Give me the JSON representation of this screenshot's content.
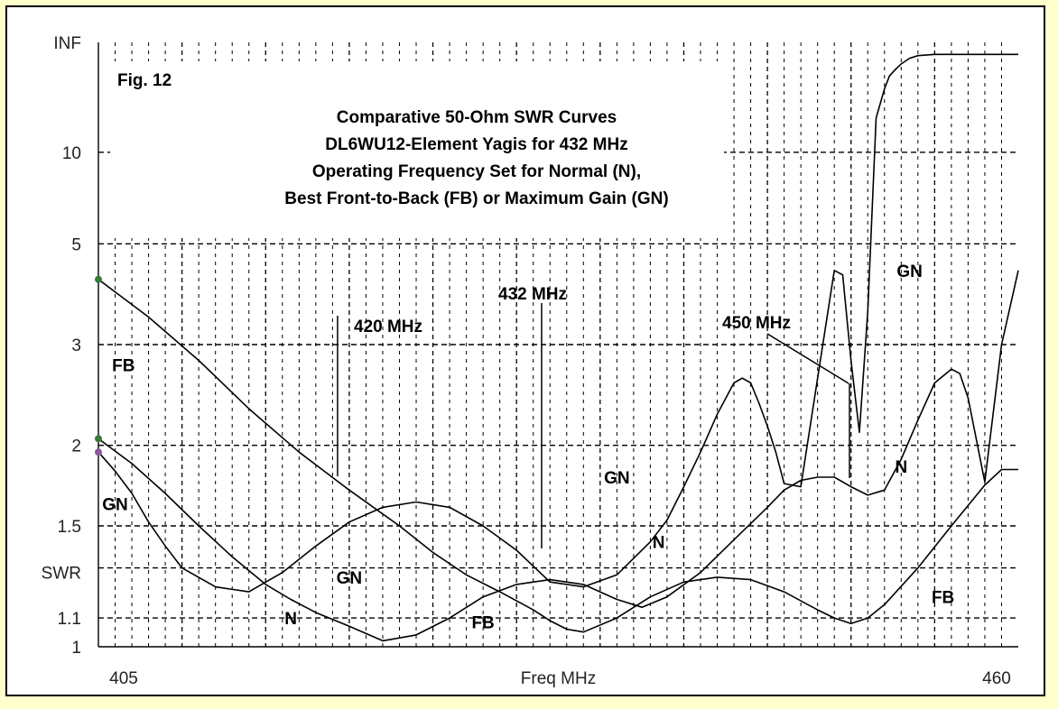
{
  "chart_data": {
    "type": "line",
    "title": "Fig. 12",
    "subtitle_lines": [
      "Comparative 50-Ohm SWR Curves",
      "DL6WU12-Element Yagis for 432 MHz",
      "Operating Frequency Set for Normal (N),",
      "Best Front-to-Back (FB) or Maximum Gain (GN)"
    ],
    "xlabel": "Freq MHz",
    "ylabel": "SWR",
    "xlim": [
      405,
      460
    ],
    "x_tick_labels": [
      "405",
      "460"
    ],
    "y_tick_labels": [
      "INF",
      "10",
      "5",
      "3",
      "2",
      "1.5",
      "1.1",
      "1"
    ],
    "y_scale": "reflection-coefficient (SWR)",
    "grid": true,
    "series": [
      {
        "name": "N",
        "x": [
          405,
          407,
          409,
          411,
          413,
          415,
          416.5,
          418,
          420,
          422,
          424,
          426,
          428,
          430,
          432,
          434,
          436,
          437.5,
          439,
          441,
          443,
          445,
          446,
          447,
          448,
          449,
          450,
          451,
          452,
          453,
          454,
          455,
          456,
          456.5,
          457,
          458,
          459,
          460
        ],
        "y": [
          2.05,
          1.87,
          1.68,
          1.5,
          1.35,
          1.23,
          1.17,
          1.12,
          1.07,
          1.02,
          1.04,
          1.1,
          1.18,
          1.23,
          1.25,
          1.23,
          1.17,
          1.14,
          1.18,
          1.28,
          1.43,
          1.6,
          1.7,
          1.76,
          1.78,
          1.78,
          1.72,
          1.67,
          1.7,
          1.9,
          2.2,
          2.55,
          2.7,
          2.65,
          2.4,
          1.75,
          3.0,
          4.3
        ]
      },
      {
        "name": "FB",
        "x": [
          405,
          408,
          411,
          414,
          417,
          420,
          423,
          425,
          427,
          429,
          431,
          432,
          433,
          434,
          436,
          438,
          440,
          442,
          444,
          446,
          448,
          449,
          450,
          451,
          452,
          454,
          456,
          458,
          459,
          460
        ],
        "y": [
          4.1,
          3.4,
          2.8,
          2.3,
          1.95,
          1.7,
          1.5,
          1.37,
          1.27,
          1.2,
          1.13,
          1.09,
          1.06,
          1.05,
          1.1,
          1.18,
          1.24,
          1.26,
          1.25,
          1.2,
          1.13,
          1.1,
          1.08,
          1.1,
          1.15,
          1.3,
          1.5,
          1.73,
          1.83,
          1.83
        ]
      },
      {
        "name": "GN",
        "x": [
          405,
          406,
          407,
          408,
          409,
          410,
          412,
          414,
          416,
          418,
          420,
          422,
          424,
          426,
          428,
          430,
          432,
          434,
          436,
          438,
          439,
          440,
          441,
          442,
          443,
          443.5,
          444,
          444.5,
          445,
          445.5,
          446,
          447,
          448,
          449,
          449.5,
          450,
          450.5,
          451,
          451.5,
          452,
          452.3,
          452.7,
          453,
          453.5,
          454,
          455,
          456,
          457,
          458,
          459,
          460
        ],
        "y": [
          1.95,
          1.82,
          1.68,
          1.52,
          1.4,
          1.3,
          1.22,
          1.2,
          1.28,
          1.4,
          1.52,
          1.6,
          1.63,
          1.6,
          1.5,
          1.38,
          1.24,
          1.22,
          1.27,
          1.42,
          1.53,
          1.72,
          1.95,
          2.25,
          2.55,
          2.6,
          2.55,
          2.35,
          2.15,
          1.95,
          1.74,
          1.72,
          2.6,
          4.3,
          4.2,
          2.8,
          2.1,
          3.5,
          15,
          25,
          35,
          45,
          55,
          75,
          90,
          100,
          100,
          100,
          100,
          100,
          100
        ]
      }
    ],
    "markers": [
      {
        "label": "420 MHz",
        "x": 420
      },
      {
        "label": "432 MHz",
        "x": 432
      },
      {
        "label": "450 MHz",
        "x": 450
      }
    ],
    "curve_labels": [
      {
        "text": "FB",
        "x": 406.5,
        "y": 2.75
      },
      {
        "text": "GN",
        "x": 406,
        "y": 1.62
      },
      {
        "text": "N",
        "x": 416.5,
        "y": 1.1
      },
      {
        "text": "GN",
        "x": 420,
        "y": 1.26
      },
      {
        "text": "FB",
        "x": 428,
        "y": 1.085
      },
      {
        "text": "GN",
        "x": 436,
        "y": 1.78
      },
      {
        "text": "N",
        "x": 438.5,
        "y": 1.42
      },
      {
        "text": "GN",
        "x": 453.5,
        "y": 4.3
      },
      {
        "text": "N",
        "x": 453,
        "y": 1.85
      },
      {
        "text": "FB",
        "x": 455.5,
        "y": 1.18
      }
    ]
  }
}
